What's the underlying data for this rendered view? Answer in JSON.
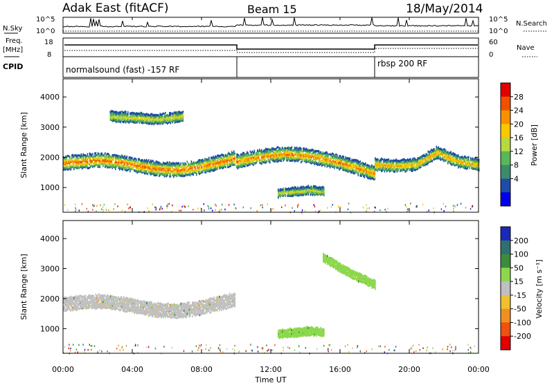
{
  "header": {
    "station": "Adak East (fitACF)",
    "beam": "Beam 15",
    "date": "18/May/2014"
  },
  "noise_panel": {
    "left_label": "N.Sky",
    "right_label": "N.Search",
    "ticks_left": [
      "10^5",
      "10^0"
    ],
    "ticks_right": [
      "10^5",
      "10^0"
    ]
  },
  "freq_panel": {
    "left_label_1": "Freq.",
    "left_label_2": "[MHz]",
    "right_label": "Nave",
    "ticks_left": [
      "18",
      "8"
    ],
    "ticks_right": [
      "60",
      "0"
    ]
  },
  "cpid_panel": {
    "label": "CPID",
    "mode_1": "normalsound (fast) -157 RF",
    "mode_2": "rbsp 200 RF"
  },
  "power_scale": {
    "title": "Power [dB]",
    "ticks": [
      "28",
      "24",
      "20",
      "16",
      "12",
      "8",
      "4"
    ],
    "colors": [
      "#e00000",
      "#f05000",
      "#f89000",
      "#f8c800",
      "#b8d840",
      "#58b858",
      "#3c8c6c",
      "#1e4ca8",
      "#0000e8"
    ]
  },
  "velocity_scale": {
    "title": "Velocity [m s⁻¹]",
    "ticks": [
      "200",
      "100",
      "50",
      "15",
      "-15",
      "-50",
      "-100",
      "-200"
    ],
    "colors": [
      "#1a2ab8",
      "#2f6f6f",
      "#3c8c3c",
      "#8cd84c",
      "#c0c0c0",
      "#f0c030",
      "#f09020",
      "#f05010",
      "#e00000"
    ]
  },
  "x_axis": {
    "label": "Time UT",
    "ticks": [
      "00:00",
      "04:00",
      "08:00",
      "12:00",
      "16:00",
      "20:00",
      "00:00"
    ]
  },
  "chart_data": [
    {
      "type": "heatmap",
      "title": "Power",
      "xlabel": "Time UT",
      "ylabel": "Slant Range [km]",
      "xlim": [
        0,
        24
      ],
      "ylim": [
        180,
        4600
      ],
      "yticks": [
        1000,
        2000,
        3000,
        4000
      ],
      "colorbar": {
        "label": "Power [dB]",
        "range": [
          0,
          30
        ]
      },
      "bands": [
        {
          "t_start": 0.0,
          "t_end": 9.9,
          "range_center": [
            1850,
            1900,
            1950,
            1870,
            1750,
            1650,
            1620,
            1700,
            1850,
            2000
          ],
          "width": 350,
          "peak_db": 22
        },
        {
          "t_start": 2.7,
          "t_end": 6.9,
          "range_center": [
            3400,
            3350,
            3300,
            3400
          ],
          "width": 250,
          "peak_db": 14
        },
        {
          "t_start": 10.0,
          "t_end": 18.0,
          "range_center": [
            1900,
            2050,
            2150,
            2100,
            1950,
            1750,
            1500
          ],
          "width": 350,
          "peak_db": 20
        },
        {
          "t_start": 12.4,
          "t_end": 15.1,
          "range_center": [
            850,
            900,
            950,
            900
          ],
          "width": 200,
          "peak_db": 14
        },
        {
          "t_start": 18.0,
          "t_end": 24.0,
          "range_center": [
            1800,
            1750,
            1800,
            2200,
            1900,
            1800
          ],
          "width": 300,
          "peak_db": 18
        }
      ]
    },
    {
      "type": "heatmap",
      "title": "Velocity",
      "xlabel": "Time UT",
      "ylabel": "Slant Range [km]",
      "xlim": [
        0,
        24
      ],
      "ylim": [
        180,
        4600
      ],
      "yticks": [
        1000,
        2000,
        3000,
        4000
      ],
      "colorbar": {
        "label": "Velocity [m s⁻¹]",
        "range": [
          -200,
          200
        ]
      },
      "bands": [
        {
          "t_start": 0.0,
          "t_end": 9.9,
          "range_center": [
            1850,
            1900,
            1950,
            1870,
            1750,
            1650,
            1620,
            1700,
            1850,
            2000
          ],
          "width": 350,
          "typical_velocity": 0
        },
        {
          "t_start": 12.4,
          "t_end": 15.1,
          "range_center": [
            850,
            900,
            950,
            900
          ],
          "width": 200,
          "typical_velocity": 30
        },
        {
          "t_start": 15.0,
          "t_end": 18.0,
          "range_center": [
            3400,
            2900,
            2500
          ],
          "width": 200,
          "typical_velocity": 30
        }
      ]
    }
  ]
}
